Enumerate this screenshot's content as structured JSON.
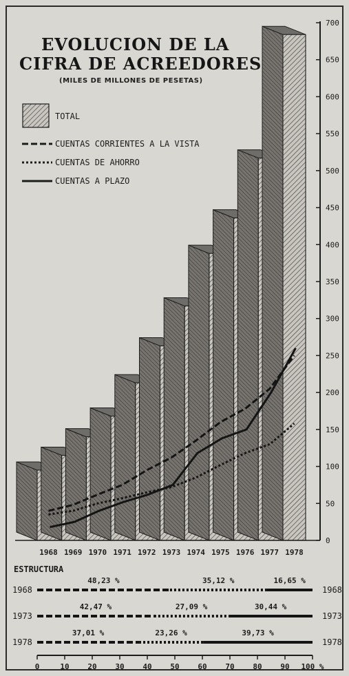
{
  "header": {
    "title_line1": "EVOLUCION DE LA",
    "title_line2": "CIFRA DE ACREEDORES",
    "subtitle": "(MILES DE MILLONES DE PESETAS)"
  },
  "legend": {
    "total": "TOTAL",
    "vista": "CUENTAS CORRIENTES A LA VISTA",
    "ahorro": "CUENTAS DE AHORRO",
    "plazo": "CUENTAS A PLAZO"
  },
  "chart_data": [
    {
      "type": "bar",
      "categories": [
        "1968",
        "1969",
        "1970",
        "1971",
        "1972",
        "1973",
        "1974",
        "1975",
        "1976",
        "1977",
        "1978"
      ],
      "series": [
        {
          "name": "TOTAL",
          "type": "bar",
          "values": [
            95,
            115,
            140,
            168,
            213,
            263,
            317,
            388,
            436,
            517,
            684
          ]
        },
        {
          "name": "CUENTAS CORRIENTES A LA VISTA",
          "type": "line",
          "style": "dashed",
          "values": [
            40,
            48,
            62,
            75,
            95,
            112,
            135,
            160,
            178,
            205,
            250
          ]
        },
        {
          "name": "CUENTAS DE AHORRO",
          "type": "line",
          "style": "dotted",
          "values": [
            35,
            40,
            50,
            57,
            65,
            72,
            85,
            102,
            118,
            130,
            158
          ]
        },
        {
          "name": "CUENTAS A PLAZO",
          "type": "line",
          "style": "solid",
          "values": [
            18,
            25,
            40,
            52,
            62,
            75,
            118,
            138,
            150,
            200,
            260
          ]
        }
      ],
      "yticks": [
        0,
        50,
        100,
        150,
        200,
        250,
        300,
        350,
        400,
        450,
        500,
        550,
        600,
        650,
        700
      ],
      "ylim": [
        0,
        700
      ],
      "y_axis_side": "right",
      "style": "3d hatched bars"
    },
    {
      "type": "stacked_bar",
      "title": "ESTRUCTURA",
      "categories": [
        "1968",
        "1973",
        "1978"
      ],
      "series": [
        {
          "name": "CUENTAS CORRIENTES A LA VISTA",
          "values": [
            48.23,
            42.47,
            37.01
          ],
          "labels": [
            "48,23 %",
            "42,47 %",
            "37,01 %"
          ]
        },
        {
          "name": "CUENTAS DE AHORRO",
          "values": [
            35.12,
            27.09,
            23.26
          ],
          "labels": [
            "35,12 %",
            "27,09 %",
            "23,26 %"
          ]
        },
        {
          "name": "CUENTAS A PLAZO",
          "values": [
            16.65,
            30.44,
            39.73
          ],
          "labels": [
            "16,65 %",
            "30,44 %",
            "39,73 %"
          ]
        }
      ],
      "xticks": [
        "0",
        "10",
        "20",
        "30",
        "40",
        "50",
        "60",
        "70",
        "80",
        "90",
        "100 %"
      ],
      "xlim": [
        0,
        100
      ]
    }
  ],
  "colors": {
    "bar_face": "#c9c6c0",
    "bar_side": "#6f6d69",
    "hatch": "#4a4846",
    "ink": "#1c1c1c",
    "paper": "#d9d7d2"
  }
}
